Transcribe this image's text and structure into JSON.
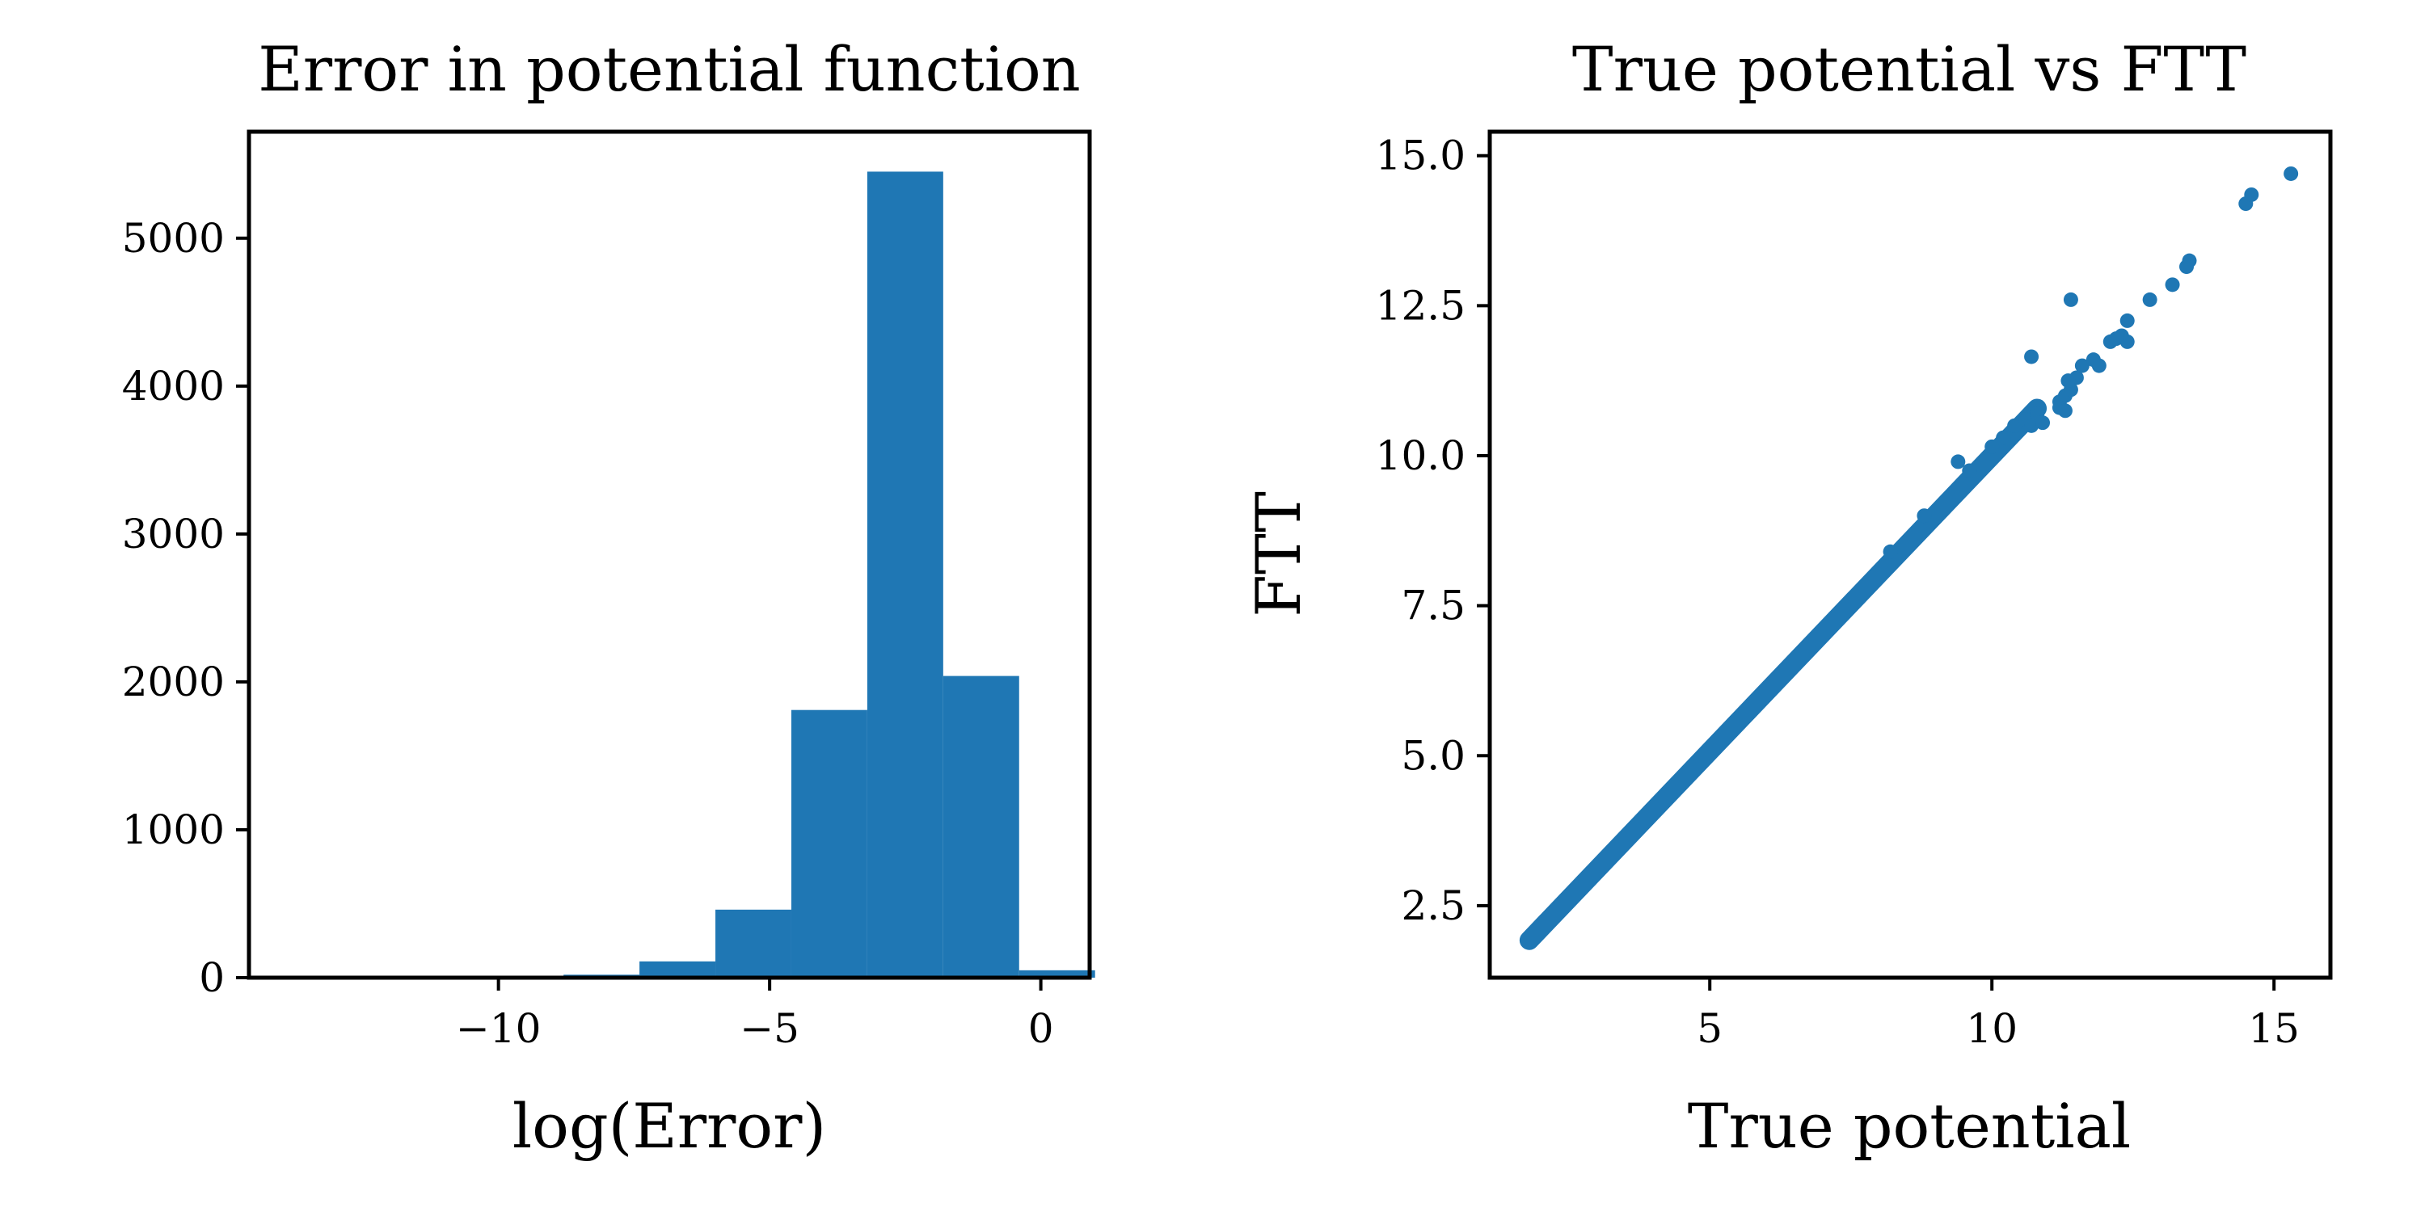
{
  "chart_data": [
    {
      "type": "bar",
      "title": "Error in potential function",
      "xlabel": "log(Error)",
      "ylabel": "",
      "xlim": [
        -14.6,
        0.9
      ],
      "ylim": [
        0,
        5720
      ],
      "xticks": [
        -10,
        -5,
        0
      ],
      "xtick_labels": [
        "−10",
        "−5",
        "0"
      ],
      "yticks": [
        0,
        1000,
        2000,
        3000,
        4000,
        5000
      ],
      "ytick_labels": [
        "0",
        "1000",
        "2000",
        "3000",
        "4000",
        "5000"
      ],
      "bins": [
        {
          "x0": -12.9,
          "x1": -11.5,
          "value": 2
        },
        {
          "x0": -11.5,
          "x1": -10.2,
          "value": 3
        },
        {
          "x0": -10.2,
          "x1": -8.8,
          "value": 8
        },
        {
          "x0": -8.8,
          "x1": -7.4,
          "value": 20
        },
        {
          "x0": -7.4,
          "x1": -6.0,
          "value": 110
        },
        {
          "x0": -6.0,
          "x1": -4.6,
          "value": 460
        },
        {
          "x0": -4.6,
          "x1": -3.2,
          "value": 1810
        },
        {
          "x0": -3.2,
          "x1": -1.8,
          "value": 5450
        },
        {
          "x0": -1.8,
          "x1": -0.4,
          "value": 2040
        },
        {
          "x0": -0.4,
          "x1": 1.0,
          "value": 50
        }
      ],
      "color": "#1f77b4",
      "grid": false
    },
    {
      "type": "scatter",
      "title": "True potential vs FTT",
      "xlabel": "True potential",
      "ylabel": "FTT",
      "xlim": [
        1.1,
        16.0
      ],
      "ylim": [
        1.3,
        15.4
      ],
      "xticks": [
        5,
        10,
        15
      ],
      "xtick_labels": [
        "5",
        "10",
        "15"
      ],
      "yticks": [
        2.5,
        5.0,
        7.5,
        10.0,
        12.5,
        15.0
      ],
      "ytick_labels": [
        "2.5",
        "5.0",
        "7.5",
        "10.0",
        "12.5",
        "15.0"
      ],
      "trend": {
        "x_start": 1.8,
        "x_end": 10.8,
        "slope": 0.985,
        "intercept": 0.15
      },
      "points": [
        [
          9.4,
          9.9
        ],
        [
          8.2,
          8.4
        ],
        [
          8.8,
          9.0
        ],
        [
          9.6,
          9.75
        ],
        [
          10.0,
          10.15
        ],
        [
          10.2,
          10.3
        ],
        [
          10.4,
          10.5
        ],
        [
          10.6,
          10.6
        ],
        [
          10.8,
          10.7
        ],
        [
          10.7,
          10.5
        ],
        [
          10.9,
          10.55
        ],
        [
          11.2,
          10.9
        ],
        [
          11.3,
          11.0
        ],
        [
          11.4,
          11.1
        ],
        [
          11.5,
          11.3
        ],
        [
          11.35,
          11.25
        ],
        [
          11.2,
          10.8
        ],
        [
          11.3,
          10.75
        ],
        [
          11.6,
          11.5
        ],
        [
          10.7,
          11.65
        ],
        [
          11.8,
          11.6
        ],
        [
          11.9,
          11.5
        ],
        [
          12.1,
          11.9
        ],
        [
          12.3,
          12.0
        ],
        [
          12.4,
          11.9
        ],
        [
          12.2,
          11.95
        ],
        [
          12.4,
          12.25
        ],
        [
          12.8,
          12.6
        ],
        [
          13.2,
          12.85
        ],
        [
          13.5,
          13.25
        ],
        [
          13.45,
          13.15
        ],
        [
          11.4,
          12.6
        ],
        [
          14.5,
          14.2
        ],
        [
          14.6,
          14.35
        ],
        [
          15.3,
          14.7
        ]
      ],
      "color": "#1f77b4",
      "grid": false
    }
  ]
}
